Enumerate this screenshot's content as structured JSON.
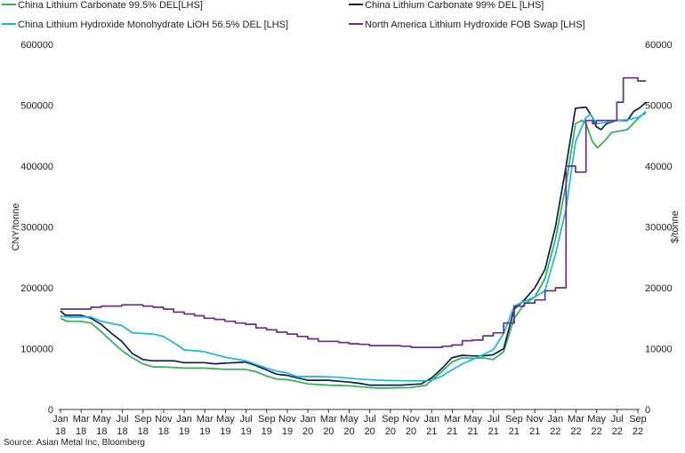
{
  "legend": [
    {
      "label": "China Lithium Carbonate 99.5% DEL[LHS]",
      "color": "#2bb44a"
    },
    {
      "label": "China Lithium Carbonate 99% DEL [LHS]",
      "color": "#0a1f4e"
    },
    {
      "label": "China Lithium Hydroxide Monohydrate LiOH 56.5% DEL [LHS]",
      "color": "#18b6e3"
    },
    {
      "label": "North America Lithium Hydroxide FOB Swap [LHS]",
      "color": "#6b2d8f"
    }
  ],
  "source": "Source: Asian Metal Inc, Bloomberg",
  "chart_data": {
    "type": "line",
    "y_left": {
      "label": "CNY/tonne",
      "min": 0,
      "max": 600000,
      "ticks": [
        0,
        100000,
        200000,
        300000,
        400000,
        500000,
        600000
      ]
    },
    "y_right": {
      "label": "$/tonne",
      "min": 0,
      "max": 60000,
      "ticks": [
        0,
        10000,
        20000,
        30000,
        40000,
        50000,
        60000
      ]
    },
    "x_ticks": [
      {
        "m": "Jan",
        "y": "18"
      },
      {
        "m": "Mar",
        "y": "18"
      },
      {
        "m": "May",
        "y": "18"
      },
      {
        "m": "Jul",
        "y": "18"
      },
      {
        "m": "Sep",
        "y": "18"
      },
      {
        "m": "Nov",
        "y": "18"
      },
      {
        "m": "Jan",
        "y": "19"
      },
      {
        "m": "Mar",
        "y": "19"
      },
      {
        "m": "May",
        "y": "19"
      },
      {
        "m": "Jul",
        "y": "19"
      },
      {
        "m": "Sep",
        "y": "19"
      },
      {
        "m": "Nov",
        "y": "19"
      },
      {
        "m": "Jan",
        "y": "20"
      },
      {
        "m": "Mar",
        "y": "20"
      },
      {
        "m": "May",
        "y": "20"
      },
      {
        "m": "Jul",
        "y": "20"
      },
      {
        "m": "Sep",
        "y": "20"
      },
      {
        "m": "Nov",
        "y": "20"
      },
      {
        "m": "Jan",
        "y": "21"
      },
      {
        "m": "Mar",
        "y": "21"
      },
      {
        "m": "May",
        "y": "21"
      },
      {
        "m": "Jul",
        "y": "21"
      },
      {
        "m": "Sep",
        "y": "21"
      },
      {
        "m": "Nov",
        "y": "21"
      },
      {
        "m": "Jan",
        "y": "22"
      },
      {
        "m": "Mar",
        "y": "22"
      },
      {
        "m": "May",
        "y": "22"
      },
      {
        "m": "Jul",
        "y": "22"
      },
      {
        "m": "Sep",
        "y": "22"
      }
    ],
    "grid": false,
    "series": [
      {
        "name": "China Lithium Carbonate 99.5% DEL[LHS]",
        "axis": "left",
        "color": "#2bb44a",
        "step": false,
        "points": [
          [
            "2018-01-01",
            150000
          ],
          [
            "2018-01-20",
            145000
          ],
          [
            "2018-03-01",
            145000
          ],
          [
            "2018-04-01",
            142000
          ],
          [
            "2018-05-01",
            128000
          ],
          [
            "2018-06-01",
            112000
          ],
          [
            "2018-07-01",
            97000
          ],
          [
            "2018-08-01",
            85000
          ],
          [
            "2018-09-01",
            75000
          ],
          [
            "2018-10-01",
            70000
          ],
          [
            "2018-11-01",
            70000
          ],
          [
            "2018-12-01",
            69000
          ],
          [
            "2019-01-01",
            68000
          ],
          [
            "2019-03-01",
            68000
          ],
          [
            "2019-05-01",
            66000
          ],
          [
            "2019-07-01",
            66000
          ],
          [
            "2019-08-01",
            62000
          ],
          [
            "2019-09-01",
            55000
          ],
          [
            "2019-10-01",
            50000
          ],
          [
            "2019-11-01",
            49000
          ],
          [
            "2019-12-01",
            46000
          ],
          [
            "2020-01-01",
            42000
          ],
          [
            "2020-03-01",
            40000
          ],
          [
            "2020-05-01",
            39000
          ],
          [
            "2020-07-01",
            36000
          ],
          [
            "2020-08-01",
            35000
          ],
          [
            "2020-11-01",
            36000
          ],
          [
            "2020-12-15",
            40000
          ],
          [
            "2021-01-01",
            48000
          ],
          [
            "2021-02-01",
            63000
          ],
          [
            "2021-03-01",
            78000
          ],
          [
            "2021-04-01",
            85000
          ],
          [
            "2021-05-01",
            84000
          ],
          [
            "2021-06-01",
            85000
          ],
          [
            "2021-07-01",
            82000
          ],
          [
            "2021-08-01",
            95000
          ],
          [
            "2021-09-01",
            150000
          ],
          [
            "2021-10-01",
            173000
          ],
          [
            "2021-11-01",
            185000
          ],
          [
            "2021-12-01",
            215000
          ],
          [
            "2022-01-01",
            280000
          ],
          [
            "2022-02-01",
            370000
          ],
          [
            "2022-03-01",
            470000
          ],
          [
            "2022-03-20",
            475000
          ],
          [
            "2022-04-01",
            470000
          ],
          [
            "2022-04-20",
            440000
          ],
          [
            "2022-05-05",
            430000
          ],
          [
            "2022-06-01",
            445000
          ],
          [
            "2022-06-15",
            455000
          ],
          [
            "2022-08-01",
            460000
          ],
          [
            "2022-09-01",
            478000
          ],
          [
            "2022-09-25",
            490000
          ]
        ]
      },
      {
        "name": "China Lithium Carbonate 99% DEL [LHS]",
        "axis": "left",
        "color": "#0a1f4e",
        "step": false,
        "points": [
          [
            "2018-01-01",
            162000
          ],
          [
            "2018-01-15",
            155000
          ],
          [
            "2018-03-01",
            155000
          ],
          [
            "2018-04-01",
            150000
          ],
          [
            "2018-05-01",
            140000
          ],
          [
            "2018-06-01",
            125000
          ],
          [
            "2018-07-01",
            112000
          ],
          [
            "2018-08-01",
            92000
          ],
          [
            "2018-09-01",
            82000
          ],
          [
            "2018-10-01",
            80000
          ],
          [
            "2018-12-01",
            80000
          ],
          [
            "2019-01-01",
            77000
          ],
          [
            "2019-03-01",
            77000
          ],
          [
            "2019-04-01",
            75000
          ],
          [
            "2019-05-01",
            76000
          ],
          [
            "2019-07-01",
            78000
          ],
          [
            "2019-08-01",
            72000
          ],
          [
            "2019-09-01",
            65000
          ],
          [
            "2019-10-01",
            58000
          ],
          [
            "2019-11-01",
            56000
          ],
          [
            "2019-12-01",
            52000
          ],
          [
            "2020-01-01",
            48000
          ],
          [
            "2020-03-01",
            48000
          ],
          [
            "2020-05-01",
            45000
          ],
          [
            "2020-06-01",
            43000
          ],
          [
            "2020-07-01",
            40000
          ],
          [
            "2020-10-01",
            40000
          ],
          [
            "2020-12-01",
            42000
          ],
          [
            "2021-01-01",
            52000
          ],
          [
            "2021-02-01",
            68000
          ],
          [
            "2021-03-01",
            85000
          ],
          [
            "2021-04-01",
            89000
          ],
          [
            "2021-05-01",
            88000
          ],
          [
            "2021-06-01",
            88000
          ],
          [
            "2021-07-01",
            90000
          ],
          [
            "2021-08-01",
            100000
          ],
          [
            "2021-09-01",
            165000
          ],
          [
            "2021-10-01",
            180000
          ],
          [
            "2021-11-01",
            200000
          ],
          [
            "2021-12-01",
            230000
          ],
          [
            "2022-01-01",
            300000
          ],
          [
            "2022-02-01",
            400000
          ],
          [
            "2022-03-01",
            495000
          ],
          [
            "2022-04-01",
            497000
          ],
          [
            "2022-04-20",
            480000
          ],
          [
            "2022-05-01",
            465000
          ],
          [
            "2022-05-15",
            460000
          ],
          [
            "2022-06-01",
            470000
          ],
          [
            "2022-07-01",
            475000
          ],
          [
            "2022-08-01",
            475000
          ],
          [
            "2022-08-20",
            490000
          ],
          [
            "2022-09-05",
            495000
          ],
          [
            "2022-09-25",
            505000
          ]
        ]
      },
      {
        "name": "China Lithium Hydroxide Monohydrate LiOH 56.5% DEL [LHS]",
        "axis": "left",
        "color": "#18b6e3",
        "step": false,
        "points": [
          [
            "2018-01-01",
            153000
          ],
          [
            "2018-02-01",
            152000
          ],
          [
            "2018-04-01",
            152000
          ],
          [
            "2018-05-01",
            145000
          ],
          [
            "2018-07-01",
            138000
          ],
          [
            "2018-08-01",
            126000
          ],
          [
            "2018-10-01",
            124000
          ],
          [
            "2018-11-01",
            120000
          ],
          [
            "2018-12-15",
            105000
          ],
          [
            "2019-01-01",
            98000
          ],
          [
            "2019-03-01",
            95000
          ],
          [
            "2019-05-01",
            86000
          ],
          [
            "2019-07-01",
            80000
          ],
          [
            "2019-09-01",
            68000
          ],
          [
            "2019-10-01",
            63000
          ],
          [
            "2019-11-01",
            60000
          ],
          [
            "2019-12-01",
            54000
          ],
          [
            "2020-02-01",
            54000
          ],
          [
            "2020-04-01",
            53000
          ],
          [
            "2020-06-01",
            50000
          ],
          [
            "2020-08-01",
            48000
          ],
          [
            "2020-11-01",
            47000
          ],
          [
            "2020-12-15",
            47000
          ],
          [
            "2021-01-01",
            48000
          ],
          [
            "2021-02-01",
            55000
          ],
          [
            "2021-03-01",
            65000
          ],
          [
            "2021-04-01",
            75000
          ],
          [
            "2021-05-01",
            82000
          ],
          [
            "2021-06-01",
            90000
          ],
          [
            "2021-07-01",
            98000
          ],
          [
            "2021-08-01",
            125000
          ],
          [
            "2021-09-01",
            170000
          ],
          [
            "2021-10-01",
            178000
          ],
          [
            "2021-11-01",
            185000
          ],
          [
            "2021-12-01",
            195000
          ],
          [
            "2022-01-01",
            255000
          ],
          [
            "2022-02-01",
            330000
          ],
          [
            "2022-03-01",
            440000
          ],
          [
            "2022-03-20",
            465000
          ],
          [
            "2022-04-01",
            480000
          ],
          [
            "2022-04-15",
            485000
          ],
          [
            "2022-05-01",
            470000
          ],
          [
            "2022-06-01",
            472000
          ],
          [
            "2022-07-01",
            475000
          ],
          [
            "2022-08-01",
            476000
          ],
          [
            "2022-09-01",
            480000
          ],
          [
            "2022-09-25",
            487000
          ]
        ]
      },
      {
        "name": "North America Lithium Hydroxide FOB Swap [LHS]",
        "axis": "right",
        "color": "#6b2d8f",
        "step": true,
        "points": [
          [
            "2018-01-01",
            16500
          ],
          [
            "2018-03-01",
            16500
          ],
          [
            "2018-04-01",
            16800
          ],
          [
            "2018-05-01",
            17000
          ],
          [
            "2018-07-01",
            17200
          ],
          [
            "2018-09-01",
            17000
          ],
          [
            "2018-10-01",
            16800
          ],
          [
            "2018-11-01",
            16500
          ],
          [
            "2018-12-01",
            16000
          ],
          [
            "2019-01-01",
            15700
          ],
          [
            "2019-02-01",
            15400
          ],
          [
            "2019-03-01",
            15000
          ],
          [
            "2019-04-01",
            14800
          ],
          [
            "2019-05-01",
            14500
          ],
          [
            "2019-06-01",
            14200
          ],
          [
            "2019-07-01",
            14000
          ],
          [
            "2019-08-01",
            13400
          ],
          [
            "2019-09-01",
            13100
          ],
          [
            "2019-10-01",
            12700
          ],
          [
            "2019-11-01",
            12400
          ],
          [
            "2019-12-01",
            12000
          ],
          [
            "2020-01-01",
            11600
          ],
          [
            "2020-02-01",
            11200
          ],
          [
            "2020-04-01",
            11000
          ],
          [
            "2020-05-01",
            10800
          ],
          [
            "2020-06-01",
            10700
          ],
          [
            "2020-07-01",
            10500
          ],
          [
            "2020-10-01",
            10400
          ],
          [
            "2020-11-01",
            10200
          ],
          [
            "2021-01-01",
            10200
          ],
          [
            "2021-02-01",
            10400
          ],
          [
            "2021-03-01",
            10600
          ],
          [
            "2021-04-01",
            11300
          ],
          [
            "2021-05-01",
            11400
          ],
          [
            "2021-06-01",
            12100
          ],
          [
            "2021-07-01",
            12600
          ],
          [
            "2021-08-01",
            14200
          ],
          [
            "2021-09-01",
            17000
          ],
          [
            "2021-10-01",
            17500
          ],
          [
            "2021-11-01",
            18000
          ],
          [
            "2021-12-01",
            19500
          ],
          [
            "2022-01-01",
            20000
          ],
          [
            "2022-02-01",
            40000
          ],
          [
            "2022-03-01",
            39000
          ],
          [
            "2022-03-15",
            39000
          ],
          [
            "2022-04-01",
            47500
          ],
          [
            "2022-04-20",
            47000
          ],
          [
            "2022-05-01",
            47500
          ],
          [
            "2022-06-01",
            47500
          ],
          [
            "2022-07-01",
            50500
          ],
          [
            "2022-07-20",
            54500
          ],
          [
            "2022-09-01",
            54000
          ],
          [
            "2022-09-25",
            54000
          ]
        ]
      }
    ]
  }
}
